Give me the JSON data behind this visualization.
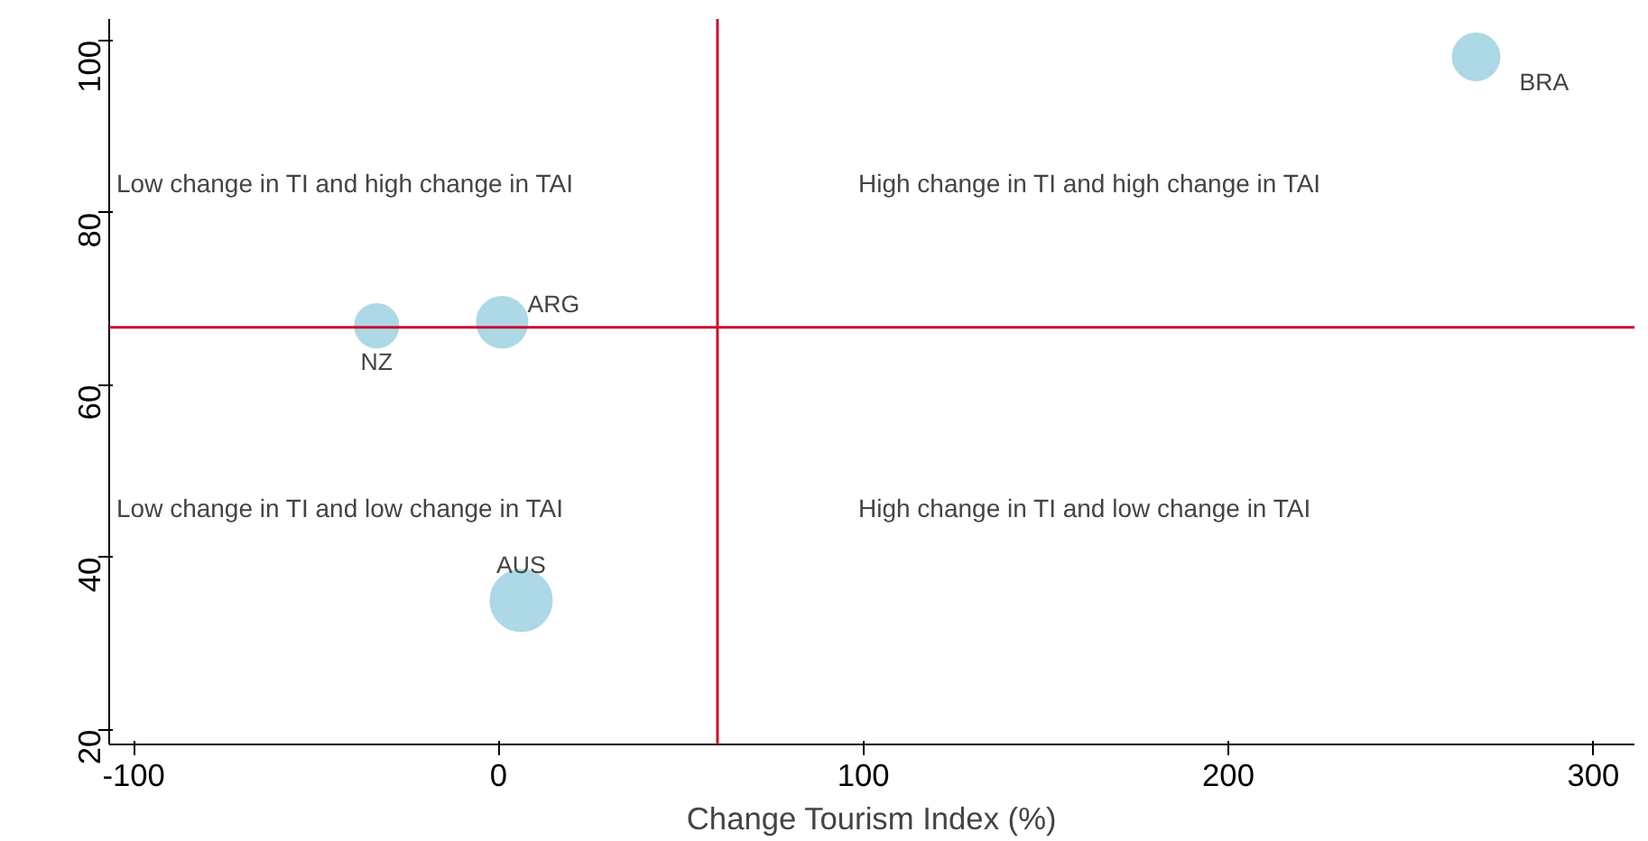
{
  "chart_data": {
    "type": "bubble",
    "xlabel": "Change Tourism Index (%)",
    "xlim": [
      -106.7,
      311.3
    ],
    "ylim": [
      18.3,
      102.5
    ],
    "xticks": [
      -100,
      0,
      100,
      200,
      300
    ],
    "yticks": [
      20,
      40,
      60,
      80,
      100
    ],
    "grid": false,
    "series": [
      {
        "name": "BRA",
        "color": "#add8e6",
        "x": [
          267.9
        ],
        "values": [
          98.1
        ],
        "sizes": [
          0.58
        ]
      },
      {
        "name": "ARG",
        "color": "#add8e6",
        "x": [
          1
        ],
        "values": [
          67.3
        ],
        "sizes": [
          0.68
        ]
      },
      {
        "name": "NZ",
        "color": "#add8e6",
        "x": [
          -33.4
        ],
        "values": [
          66.9
        ],
        "sizes": [
          0.5
        ]
      },
      {
        "name": "AUS",
        "color": "#add8e6",
        "x": [
          6.2
        ],
        "values": [
          35.0
        ],
        "sizes": [
          1
        ]
      }
    ],
    "ref_lines": [
      {
        "axis": "x",
        "value": 60,
        "color": "#c8102e"
      },
      {
        "axis": "y",
        "value": 66.7,
        "color": "#c8102e"
      }
    ],
    "annotations": [
      "Low change in TI and high change in TAI",
      "High change in TI and high change in TAI",
      "Low change in TI and low change in TAI",
      "High change in TI and low change in TAI"
    ]
  }
}
